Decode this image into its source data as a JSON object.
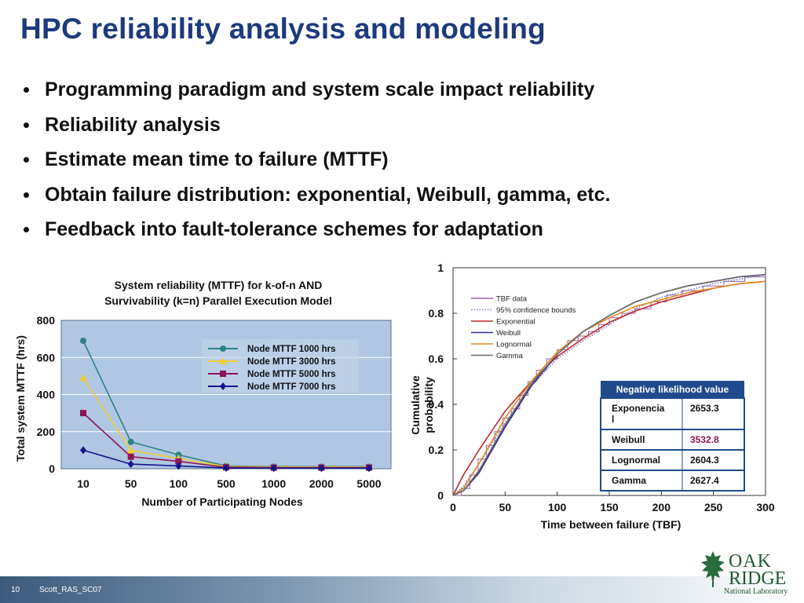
{
  "title": "HPC reliability analysis and modeling",
  "bullets": [
    "Programming paradigm and system scale impact reliability",
    "Reliability analysis",
    "Estimate mean time to failure (MTTF)",
    "Obtain failure distribution: exponential, Weibull, gamma, etc.",
    "Feedback into fault-tolerance schemes for adaptation"
  ],
  "footer": {
    "page_number": "10",
    "text": "Scott_RAS_SC07"
  },
  "logo": {
    "line1": "OAK",
    "line2": "RIDGE",
    "line3": "National Laboratory"
  },
  "chart_data": [
    {
      "type": "line",
      "title_lines": [
        "System reliability (MTTF) for k-of-n AND",
        "Survivability (k=n) Parallel Execution Model"
      ],
      "xlabel": "Number of Participating Nodes",
      "ylabel": "Total system MTTF (hrs)",
      "categories": [
        "10",
        "50",
        "100",
        "500",
        "1000",
        "2000",
        "5000"
      ],
      "ylim": [
        0,
        800
      ],
      "yticks": [
        0,
        200,
        400,
        600,
        800
      ],
      "grid": true,
      "legend_position": "top-right",
      "colors": {
        "plot_bg": "#b0c7e4"
      },
      "series": [
        {
          "name": "Node MTTF 1000 hrs",
          "color": "#2b8484",
          "marker": "circle",
          "values": [
            690,
            145,
            75,
            15,
            12,
            12,
            12
          ]
        },
        {
          "name": "Node MTTF 3000 hrs",
          "color": "#f0cd33",
          "marker": "triangle",
          "values": [
            490,
            100,
            55,
            12,
            10,
            10,
            10
          ]
        },
        {
          "name": "Node MTTF 5000 hrs",
          "color": "#8c1456",
          "marker": "square",
          "values": [
            300,
            65,
            40,
            8,
            6,
            6,
            6
          ]
        },
        {
          "name": "Node MTTF 7000 hrs",
          "color": "#14148c",
          "marker": "diamond",
          "values": [
            100,
            25,
            15,
            4,
            3,
            3,
            3
          ]
        }
      ]
    },
    {
      "type": "line",
      "xlabel": "Time between failure (TBF)",
      "ylabel_lines": [
        "Cumulative",
        "probability"
      ],
      "xlim": [
        0,
        300
      ],
      "ylim": [
        0,
        1
      ],
      "xticks": [
        0,
        50,
        100,
        150,
        200,
        250,
        300
      ],
      "yticks": [
        0,
        0.2,
        0.4,
        0.6,
        0.8,
        1
      ],
      "ytick_labels": [
        "0",
        "0.2",
        "0.4",
        "0.6",
        "0.8",
        "1"
      ],
      "legend_position": "top-left",
      "series": [
        {
          "name": "TBF data",
          "color": "#9b5fa8",
          "style": "step",
          "x": [
            0,
            8,
            16,
            24,
            32,
            40,
            48,
            56,
            64,
            72,
            80,
            90,
            100,
            110,
            120,
            130,
            140,
            150,
            162,
            175,
            190,
            205,
            220,
            240,
            260,
            280,
            300
          ],
          "y": [
            0,
            0.03,
            0.09,
            0.16,
            0.22,
            0.28,
            0.34,
            0.38,
            0.44,
            0.5,
            0.55,
            0.6,
            0.64,
            0.68,
            0.7,
            0.72,
            0.75,
            0.78,
            0.8,
            0.82,
            0.85,
            0.88,
            0.9,
            0.92,
            0.94,
            0.96,
            0.97
          ]
        },
        {
          "name": "95% confidence bounds",
          "color": "#7a7ac0",
          "style": "dotted",
          "x": [
            0,
            10,
            25,
            50,
            75,
            100,
            125,
            150,
            175,
            200,
            225,
            250,
            275,
            300
          ],
          "y": [
            0,
            0.04,
            0.14,
            0.32,
            0.48,
            0.6,
            0.68,
            0.75,
            0.82,
            0.87,
            0.9,
            0.93,
            0.95,
            0.97
          ]
        },
        {
          "name": "Exponential",
          "color": "#c0282d",
          "style": "solid",
          "x": [
            0,
            10,
            25,
            50,
            75,
            100,
            125,
            150,
            175,
            200,
            225,
            250,
            275,
            300
          ],
          "y": [
            0,
            0.09,
            0.2,
            0.37,
            0.5,
            0.61,
            0.69,
            0.76,
            0.81,
            0.85,
            0.88,
            0.91,
            0.93,
            0.94
          ]
        },
        {
          "name": "Weibull",
          "color": "#2a2a90",
          "style": "solid",
          "x": [
            0,
            10,
            25,
            50,
            75,
            100,
            125,
            150,
            175,
            200,
            225,
            250,
            275,
            300
          ],
          "y": [
            0,
            0.02,
            0.1,
            0.3,
            0.48,
            0.62,
            0.72,
            0.79,
            0.85,
            0.89,
            0.92,
            0.94,
            0.96,
            0.97
          ]
        },
        {
          "name": "Lognormal",
          "color": "#e08a1e",
          "style": "solid",
          "x": [
            0,
            10,
            25,
            50,
            75,
            100,
            125,
            150,
            175,
            200,
            225,
            250,
            275,
            300
          ],
          "y": [
            0,
            0.03,
            0.14,
            0.34,
            0.5,
            0.63,
            0.72,
            0.78,
            0.83,
            0.86,
            0.89,
            0.91,
            0.93,
            0.94
          ]
        },
        {
          "name": "Gamma",
          "color": "#6e6e6e",
          "style": "solid",
          "x": [
            0,
            10,
            25,
            50,
            75,
            100,
            125,
            150,
            175,
            200,
            225,
            250,
            275,
            300
          ],
          "y": [
            0,
            0.02,
            0.11,
            0.31,
            0.49,
            0.62,
            0.72,
            0.79,
            0.85,
            0.89,
            0.92,
            0.94,
            0.96,
            0.97
          ]
        }
      ],
      "table": {
        "header": "Negative likelihood value",
        "rows": [
          {
            "label_lines": [
              "Exponencia",
              "l"
            ],
            "value": "2653.3",
            "highlight": false
          },
          {
            "label_lines": [
              "Weibull"
            ],
            "value": "3532.8",
            "highlight": true
          },
          {
            "label_lines": [
              "Lognormal"
            ],
            "value": "2604.3",
            "highlight": false
          },
          {
            "label_lines": [
              "Gamma"
            ],
            "value": "2627.4",
            "highlight": false
          }
        ],
        "colors": {
          "header_bg": "#1f4b8c",
          "header_text": "#ffffff",
          "border": "#1f4b8c",
          "highlight_text": "#8c1456"
        }
      }
    }
  ]
}
